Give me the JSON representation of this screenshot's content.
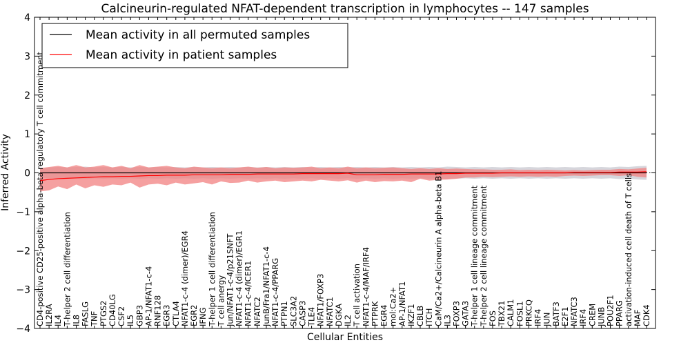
{
  "chart_data": {
    "type": "line",
    "title": "Calcineurin-regulated NFAT-dependent transcription in lymphocytes -- 147 samples",
    "xlabel": "Cellular Entities",
    "ylabel": "Inferred Activity",
    "ylim": [
      -4,
      4
    ],
    "yticks": [
      -4,
      -3,
      -2,
      -1,
      0,
      1,
      2,
      3,
      4
    ],
    "ytick_labels": [
      "−4",
      "−3",
      "−2",
      "−1",
      "0",
      "1",
      "2",
      "3",
      "4"
    ],
    "reference_line": 0,
    "legend_position": "top-left",
    "colors": {
      "permuted_line": "#000000",
      "patient_line": "#ff0000",
      "patient_band": "#f28080",
      "permuted_band": "#c8c8d0"
    },
    "categories": [
      "CD4-positive CD25-positive alpha-beta regulatory T cell commitment",
      "IL2RA",
      "IL4",
      "T-helper 2 cell differentiation",
      "IL8",
      "FASLG",
      "TNF",
      "PTGS2",
      "CD40LG",
      "CSF2",
      "IL5",
      "GBP3",
      "AP-1/NFAT1-c-4",
      "RNF128",
      "EGR3",
      "CTLA4",
      "NFAT1-c-4 (dimer)/EGR4",
      "EGR2",
      "IFNG",
      "T-helper 1 cell differentiation",
      "T cell anergy",
      "Jun/NFAT1-c-4/p21SNFT",
      "NFAT1-c-4 (dimer)/EGR1",
      "NFAT1-c-4/ICER1",
      "NFATC2",
      "JunB/Fra1/NFAT1-c-4",
      "NFAT1-c-4/PPARG",
      "PTPN1",
      "SLC3A2",
      "CASP3",
      "TLE4",
      "NFAT1/FOXP3",
      "NFATC1",
      "DGKA",
      "IL2",
      "T cell activation",
      "NFAT1-c-4/MAF/IRF4",
      "PTPRK",
      "EGR4",
      "mol:Ca2+",
      "AP-1/NFAT1",
      "IKZF1",
      "CBLB",
      "ITCH",
      "CaM/Ca2+/Calcineurin A alpha-beta B1",
      "IL3",
      "FOXP3",
      "GATA3",
      "T-helper 1 cell lineage commitment",
      "T-helper 2 cell lineage commitment",
      "FOS",
      "TBX21",
      "CALM1",
      "FOSL1",
      "PRKCQ",
      "IRF4",
      "JUN",
      "BATF3",
      "E2F1",
      "NFATC3",
      "IRF4",
      "CREM",
      "JUNB",
      "POU2F1",
      "PPARG",
      "activation-induced cell death of T cells",
      "MAF",
      "CDK4"
    ],
    "series": [
      {
        "name": "Mean activity in all permuted samples",
        "values": [
          0,
          0,
          0,
          0,
          0,
          0,
          0,
          0,
          0,
          0,
          0,
          0,
          0,
          0,
          0,
          0,
          0,
          0,
          0,
          0,
          0,
          0,
          0,
          0,
          0,
          0,
          0,
          0,
          0,
          0,
          0,
          0,
          0,
          0,
          0,
          0,
          0,
          0,
          0,
          0,
          0,
          0,
          0,
          0,
          0,
          0,
          0,
          0,
          0,
          0,
          0,
          0,
          0,
          0,
          0,
          0,
          0,
          0,
          0,
          0,
          0,
          0,
          0,
          0,
          0,
          0,
          0,
          0
        ],
        "band_lower": [
          -0.12,
          -0.14,
          -0.15,
          -0.14,
          -0.15,
          -0.16,
          -0.14,
          -0.15,
          -0.14,
          -0.15,
          -0.14,
          -0.15,
          -0.14,
          -0.15,
          -0.14,
          -0.15,
          -0.14,
          -0.15,
          -0.14,
          -0.15,
          -0.14,
          -0.15,
          -0.14,
          -0.15,
          -0.14,
          -0.15,
          -0.14,
          -0.15,
          -0.14,
          -0.15,
          -0.14,
          -0.15,
          -0.14,
          -0.15,
          -0.14,
          -0.15,
          -0.14,
          -0.15,
          -0.14,
          -0.15,
          -0.14,
          -0.15,
          -0.14,
          -0.15,
          -0.14,
          -0.16,
          -0.15,
          -0.14,
          -0.15,
          -0.14,
          -0.15,
          -0.14,
          -0.15,
          -0.14,
          -0.15,
          -0.14,
          -0.15,
          -0.14,
          -0.15,
          -0.14,
          -0.15,
          -0.14,
          -0.15,
          -0.14,
          -0.16,
          -0.15,
          -0.17,
          -0.18
        ],
        "band_upper": [
          0.12,
          0.14,
          0.15,
          0.14,
          0.15,
          0.16,
          0.14,
          0.15,
          0.14,
          0.15,
          0.14,
          0.15,
          0.14,
          0.15,
          0.14,
          0.15,
          0.14,
          0.15,
          0.14,
          0.15,
          0.14,
          0.15,
          0.14,
          0.15,
          0.14,
          0.15,
          0.14,
          0.15,
          0.14,
          0.15,
          0.14,
          0.15,
          0.14,
          0.15,
          0.14,
          0.15,
          0.14,
          0.15,
          0.14,
          0.15,
          0.14,
          0.15,
          0.14,
          0.15,
          0.14,
          0.16,
          0.15,
          0.14,
          0.15,
          0.14,
          0.15,
          0.14,
          0.15,
          0.14,
          0.15,
          0.14,
          0.15,
          0.14,
          0.15,
          0.14,
          0.15,
          0.14,
          0.15,
          0.14,
          0.16,
          0.15,
          0.17,
          0.18
        ]
      },
      {
        "name": "Mean activity in patient samples",
        "values": [
          -0.2,
          -0.17,
          -0.15,
          -0.14,
          -0.13,
          -0.12,
          -0.11,
          -0.1,
          -0.1,
          -0.09,
          -0.09,
          -0.08,
          -0.07,
          -0.07,
          -0.06,
          -0.06,
          -0.06,
          -0.05,
          -0.05,
          -0.05,
          -0.05,
          -0.04,
          -0.04,
          -0.04,
          -0.03,
          -0.03,
          -0.03,
          -0.03,
          -0.03,
          -0.02,
          -0.02,
          -0.02,
          -0.02,
          -0.02,
          -0.01,
          -0.05,
          -0.05,
          -0.05,
          -0.04,
          -0.04,
          -0.04,
          -0.03,
          -0.03,
          -0.03,
          -0.03,
          -0.02,
          -0.02,
          -0.01,
          -0.01,
          -0.01,
          -0.01,
          0.0,
          0.0,
          0.0,
          0.0,
          0.0,
          0.0,
          0.0,
          0.0,
          0.01,
          0.01,
          0.01,
          0.01,
          0.01,
          0.02,
          0.02,
          0.02,
          0.03
        ],
        "band_lower": [
          -0.48,
          -0.45,
          -0.35,
          -0.42,
          -0.3,
          -0.4,
          -0.32,
          -0.36,
          -0.3,
          -0.32,
          -0.25,
          -0.38,
          -0.3,
          -0.28,
          -0.32,
          -0.25,
          -0.3,
          -0.27,
          -0.24,
          -0.3,
          -0.22,
          -0.26,
          -0.25,
          -0.2,
          -0.25,
          -0.22,
          -0.2,
          -0.24,
          -0.22,
          -0.2,
          -0.22,
          -0.18,
          -0.2,
          -0.22,
          -0.19,
          -0.25,
          -0.2,
          -0.24,
          -0.21,
          -0.22,
          -0.2,
          -0.24,
          -0.15,
          -0.2,
          -0.18,
          -0.17,
          -0.15,
          -0.12,
          -0.12,
          -0.1,
          -0.11,
          -0.1,
          -0.09,
          -0.1,
          -0.09,
          -0.1,
          -0.09,
          -0.1,
          -0.08,
          -0.07,
          -0.08,
          -0.07,
          -0.06,
          -0.06,
          -0.08,
          -0.06,
          -0.1,
          -0.12
        ],
        "band_upper": [
          0.12,
          0.15,
          0.18,
          0.14,
          0.2,
          0.14,
          0.16,
          0.2,
          0.14,
          0.18,
          0.12,
          0.2,
          0.14,
          0.16,
          0.18,
          0.14,
          0.12,
          0.16,
          0.14,
          0.12,
          0.14,
          0.12,
          0.14,
          0.16,
          0.13,
          0.15,
          0.12,
          0.14,
          0.13,
          0.14,
          0.16,
          0.12,
          0.14,
          0.12,
          0.16,
          0.12,
          0.14,
          0.12,
          0.13,
          0.14,
          0.12,
          0.1,
          0.12,
          0.1,
          0.12,
          0.1,
          0.11,
          0.1,
          0.09,
          0.09,
          0.08,
          0.08,
          0.09,
          0.07,
          0.08,
          0.07,
          0.08,
          0.07,
          0.06,
          0.07,
          0.06,
          0.07,
          0.08,
          0.08,
          0.1,
          0.09,
          0.11,
          0.13
        ]
      }
    ]
  }
}
